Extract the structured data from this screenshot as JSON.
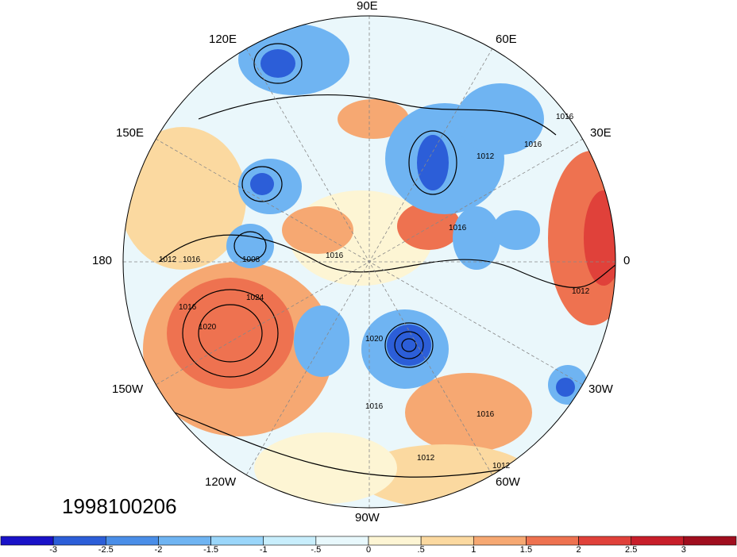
{
  "map": {
    "projection": "polar stereographic (northern hemisphere)",
    "longitude_labels": {
      "top": "90E",
      "top_right": "60E",
      "top_left": "120E",
      "upper_right": "30E",
      "upper_left": "150E",
      "right": "0",
      "left": "180",
      "lower_right": "30W",
      "lower_left": "150W",
      "bottom_right": "60W",
      "bottom_left": "120W",
      "bottom": "90W"
    },
    "contour_labels": [
      "1016",
      "1012",
      "1016",
      "1016",
      "1012",
      "1008",
      "1016",
      "1012",
      "1016",
      "1024",
      "1016",
      "1020",
      "1020",
      "1016",
      "1012",
      "1016",
      "1012"
    ]
  },
  "date_label": "1998100206",
  "colorbar": {
    "labels": [
      "-3",
      "-2.5",
      "-2",
      "-1.5",
      "-1",
      "-.5",
      "0",
      ".5",
      "1",
      "1.5",
      "2",
      "2.5",
      "3"
    ],
    "colors": [
      "#1a12c8",
      "#2c5ed8",
      "#4a8ee8",
      "#6fb4f2",
      "#9ad6fa",
      "#c8eefc",
      "#e8f8fc",
      "#fdf5d4",
      "#fbd9a0",
      "#f6a872",
      "#ee7250",
      "#e0413a",
      "#c81e2a",
      "#a00e1e"
    ]
  }
}
